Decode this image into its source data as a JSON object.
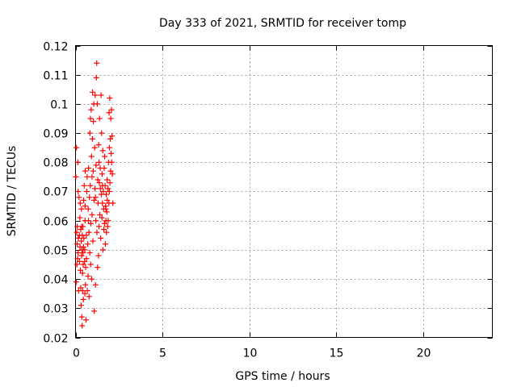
{
  "chart_data": {
    "type": "scatter",
    "title": "Day 333 of 2021, SRMTID for receiver tomp",
    "xlabel": "GPS time / hours",
    "ylabel": "SRMTID / TECUs",
    "xlim": [
      0,
      24
    ],
    "ylim": [
      0.02,
      0.12
    ],
    "x_ticks": [
      0,
      5,
      10,
      15,
      20
    ],
    "x_tick_labels": [
      "0",
      "5",
      "10",
      "15",
      "20"
    ],
    "y_ticks": [
      0.02,
      0.03,
      0.04,
      0.05,
      0.06,
      0.07,
      0.08,
      0.09,
      0.1,
      0.11,
      0.12
    ],
    "y_tick_labels": [
      "0.02",
      "0.03",
      "0.04",
      "0.05",
      "0.06",
      "0.07",
      "0.08",
      "0.09",
      "0.1",
      "0.11",
      "0.12"
    ],
    "grid": true,
    "marker": "plus",
    "color": "#ff0000",
    "series": [
      {
        "points": [
          [
            0.02,
            0.075
          ],
          [
            0.04,
            0.039
          ],
          [
            0.05,
            0.085
          ],
          [
            0.07,
            0.056
          ],
          [
            0.08,
            0.045
          ],
          [
            0.1,
            0.052
          ],
          [
            0.1,
            0.058
          ],
          [
            0.12,
            0.047
          ],
          [
            0.13,
            0.08
          ],
          [
            0.15,
            0.049
          ],
          [
            0.16,
            0.054
          ],
          [
            0.18,
            0.036
          ],
          [
            0.2,
            0.068
          ],
          [
            0.22,
            0.055
          ],
          [
            0.23,
            0.046
          ],
          [
            0.25,
            0.061
          ],
          [
            0.26,
            0.051
          ],
          [
            0.27,
            0.066
          ],
          [
            0.28,
            0.043
          ],
          [
            0.3,
            0.057
          ],
          [
            0.3,
            0.037
          ],
          [
            0.32,
            0.031
          ],
          [
            0.33,
            0.053
          ],
          [
            0.34,
            0.064
          ],
          [
            0.35,
            0.048
          ],
          [
            0.36,
            0.027
          ],
          [
            0.37,
            0.05
          ],
          [
            0.38,
            0.024
          ],
          [
            0.39,
            0.055
          ],
          [
            0.4,
            0.042
          ],
          [
            0.41,
            0.036
          ],
          [
            0.42,
            0.058
          ],
          [
            0.43,
            0.049
          ],
          [
            0.44,
            0.045
          ],
          [
            0.45,
            0.033
          ],
          [
            0.46,
            0.051
          ],
          [
            0.47,
            0.067
          ],
          [
            0.48,
            0.054
          ],
          [
            0.5,
            0.072
          ],
          [
            0.52,
            0.046
          ],
          [
            0.53,
            0.05
          ],
          [
            0.54,
            0.035
          ],
          [
            0.55,
            0.06
          ],
          [
            0.56,
            0.077
          ],
          [
            0.57,
            0.038
          ],
          [
            0.58,
            0.044
          ],
          [
            0.6,
            0.026
          ],
          [
            0.62,
            0.055
          ],
          [
            0.63,
            0.047
          ],
          [
            0.65,
            0.07
          ],
          [
            0.67,
            0.075
          ],
          [
            0.68,
            0.036
          ],
          [
            0.7,
            0.052
          ],
          [
            0.72,
            0.041
          ],
          [
            0.73,
            0.064
          ],
          [
            0.75,
            0.078
          ],
          [
            0.77,
            0.056
          ],
          [
            0.78,
            0.034
          ],
          [
            0.8,
            0.068
          ],
          [
            0.82,
            0.049
          ],
          [
            0.83,
            0.09
          ],
          [
            0.85,
            0.072
          ],
          [
            0.86,
            0.095
          ],
          [
            0.87,
            0.045
          ],
          [
            0.88,
            0.059
          ],
          [
            0.9,
            0.098
          ],
          [
            0.92,
            0.082
          ],
          [
            0.93,
            0.04
          ],
          [
            0.95,
            0.062
          ],
          [
            0.97,
            0.088
          ],
          [
            0.98,
            0.104
          ],
          [
            1.0,
            0.053
          ],
          [
            1.02,
            0.077
          ],
          [
            1.03,
            0.094
          ],
          [
            1.05,
            0.1
          ],
          [
            1.07,
            0.067
          ],
          [
            1.08,
            0.029
          ],
          [
            1.1,
            0.085
          ],
          [
            1.12,
            0.071
          ],
          [
            1.13,
            0.103
          ],
          [
            1.15,
            0.038
          ],
          [
            1.17,
            0.06
          ],
          [
            1.18,
            0.079
          ],
          [
            1.2,
            0.109
          ],
          [
            1.22,
            0.114
          ],
          [
            1.23,
            0.056
          ],
          [
            1.25,
            0.1
          ],
          [
            1.27,
            0.044
          ],
          [
            1.28,
            0.074
          ],
          [
            1.3,
            0.066
          ],
          [
            1.32,
            0.048
          ],
          [
            1.33,
            0.086
          ],
          [
            1.35,
            0.058
          ],
          [
            1.37,
            0.073
          ],
          [
            1.38,
            0.095
          ],
          [
            1.4,
            0.062
          ],
          [
            1.42,
            0.078
          ],
          [
            1.43,
            0.071
          ],
          [
            1.45,
            0.054
          ],
          [
            1.47,
            0.103
          ],
          [
            1.48,
            0.069
          ],
          [
            1.5,
            0.09
          ],
          [
            1.52,
            0.061
          ],
          [
            1.53,
            0.076
          ],
          [
            1.55,
            0.066
          ],
          [
            1.57,
            0.084
          ],
          [
            1.58,
            0.05
          ],
          [
            1.6,
            0.07
          ],
          [
            1.62,
            0.064
          ],
          [
            1.63,
            0.057
          ],
          [
            1.65,
            0.078
          ],
          [
            1.67,
            0.059
          ],
          [
            1.68,
            0.082
          ],
          [
            1.7,
            0.072
          ],
          [
            1.72,
            0.052
          ],
          [
            1.73,
            0.065
          ],
          [
            1.75,
            0.06
          ],
          [
            1.77,
            0.069
          ],
          [
            1.78,
            0.056
          ],
          [
            1.8,
            0.063
          ],
          [
            1.82,
            0.074
          ],
          [
            1.83,
            0.067
          ],
          [
            1.85,
            0.058
          ],
          [
            1.87,
            0.071
          ],
          [
            1.88,
            0.06
          ],
          [
            1.9,
            0.08
          ],
          [
            1.92,
            0.066
          ],
          [
            1.93,
            0.097
          ],
          [
            1.95,
            0.085
          ],
          [
            1.97,
            0.102
          ],
          [
            1.98,
            0.073
          ],
          [
            2.0,
            0.088
          ],
          [
            2.02,
            0.077
          ],
          [
            2.03,
            0.095
          ],
          [
            2.05,
            0.083
          ],
          [
            2.07,
            0.098
          ],
          [
            2.08,
            0.08
          ],
          [
            2.1,
            0.089
          ],
          [
            2.12,
            0.076
          ],
          [
            2.15,
            0.066
          ],
          [
            0.15,
            0.07
          ],
          [
            0.35,
            0.058
          ],
          [
            0.55,
            0.065
          ],
          [
            0.75,
            0.06
          ],
          [
            0.95,
            0.075
          ],
          [
            1.15,
            0.068
          ],
          [
            1.35,
            0.08
          ],
          [
            1.55,
            0.072
          ],
          [
            1.75,
            0.064
          ],
          [
            1.95,
            0.07
          ]
        ]
      }
    ]
  }
}
